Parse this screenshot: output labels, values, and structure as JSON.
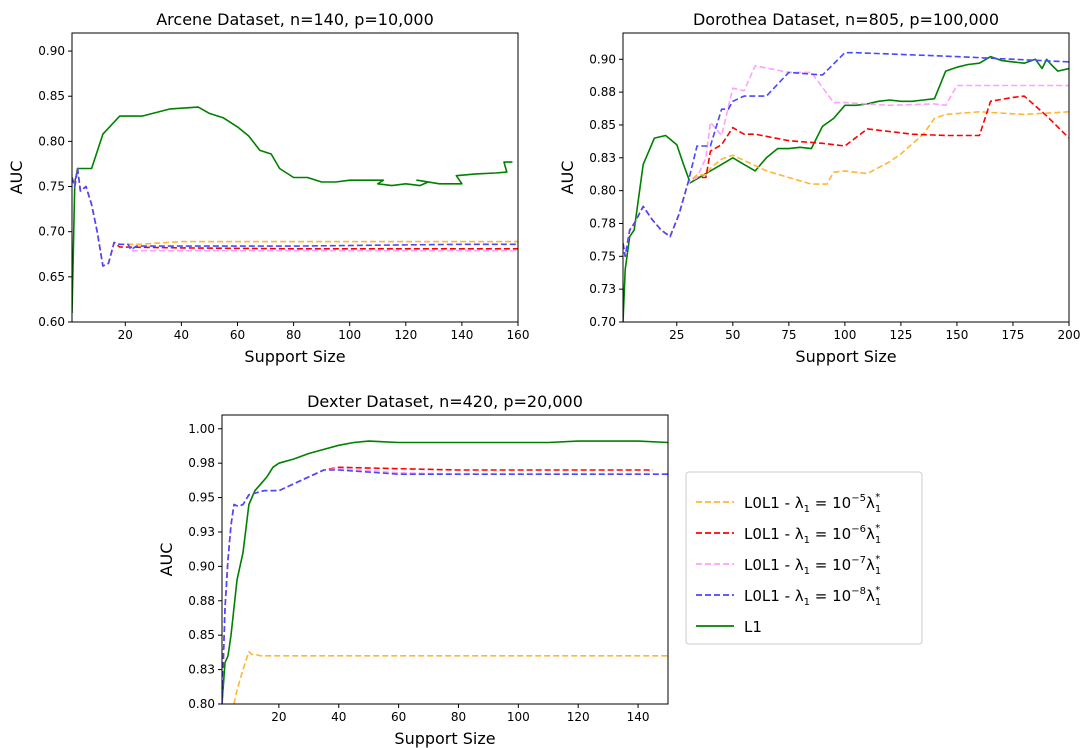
{
  "colors": {
    "L0L1_1e-5": "#ffb732",
    "L0L1_1e-6": "#ff0000",
    "L0L1_1e-7": "#ffa0ff",
    "L0L1_1e-8": "#4848ff",
    "L1": "#008000"
  },
  "legend": {
    "placement": "right of bottom panel",
    "entries": [
      {
        "key": "L0L1_1e-5",
        "prefix": "L0L1 - λ",
        "exp": "−5",
        "style": "dashed"
      },
      {
        "key": "L0L1_1e-6",
        "prefix": "L0L1 - λ",
        "exp": "−6",
        "style": "dashed"
      },
      {
        "key": "L0L1_1e-7",
        "prefix": "L0L1 - λ",
        "exp": "−7",
        "style": "dashed"
      },
      {
        "key": "L0L1_1e-8",
        "prefix": "L0L1 - λ",
        "exp": "−8",
        "style": "dashed"
      },
      {
        "key": "L1",
        "label": "L1",
        "style": "solid"
      }
    ]
  },
  "chart_data": [
    {
      "id": "arcene",
      "type": "line",
      "title": "Arcene Dataset, n=140, p=10,000",
      "xlabel": "Support Size",
      "ylabel": "AUC",
      "xlim": [
        1,
        160
      ],
      "ylim": [
        0.6,
        0.92
      ],
      "xticks": [
        20,
        40,
        60,
        80,
        100,
        120,
        140,
        160
      ],
      "yticks": [
        0.6,
        0.65,
        0.7,
        0.75,
        0.8,
        0.85,
        0.9
      ],
      "ytick_labels": [
        "0.60",
        "0.65",
        "0.70",
        "0.75",
        "0.80",
        "0.85",
        "0.90"
      ],
      "grid": false,
      "series": [
        {
          "key": "L1",
          "x": [
            1,
            2,
            3,
            4,
            8,
            12,
            18,
            26,
            36,
            46,
            50,
            55,
            60,
            64,
            68,
            72,
            75,
            80,
            85,
            90,
            95,
            100,
            108,
            112,
            110,
            115,
            120,
            125,
            128,
            124,
            132,
            140,
            138,
            145,
            152,
            156,
            155,
            158
          ],
          "y": [
            0.61,
            0.755,
            0.77,
            0.77,
            0.77,
            0.808,
            0.828,
            0.828,
            0.836,
            0.838,
            0.831,
            0.826,
            0.816,
            0.806,
            0.79,
            0.786,
            0.77,
            0.76,
            0.76,
            0.755,
            0.755,
            0.757,
            0.757,
            0.757,
            0.753,
            0.751,
            0.753,
            0.751,
            0.755,
            0.757,
            0.753,
            0.753,
            0.762,
            0.764,
            0.765,
            0.766,
            0.777,
            0.777
          ]
        },
        {
          "key": "L0L1_1e-5",
          "x": [
            1,
            2,
            3,
            4,
            6,
            8,
            10,
            12,
            14,
            16,
            18,
            25,
            40,
            60,
            80,
            100,
            120,
            140,
            160
          ],
          "y": [
            0.76,
            0.75,
            0.77,
            0.745,
            0.75,
            0.73,
            0.7,
            0.662,
            0.665,
            0.688,
            0.686,
            0.686,
            0.689,
            0.689,
            0.689,
            0.689,
            0.689,
            0.689,
            0.689
          ]
        },
        {
          "key": "L0L1_1e-6",
          "x": [
            1,
            2,
            3,
            4,
            6,
            8,
            10,
            12,
            14,
            16,
            18,
            40,
            80,
            120,
            160
          ],
          "y": [
            0.76,
            0.75,
            0.77,
            0.745,
            0.75,
            0.73,
            0.7,
            0.662,
            0.665,
            0.688,
            0.683,
            0.682,
            0.681,
            0.681,
            0.681
          ]
        },
        {
          "key": "L0L1_1e-7",
          "x": [
            1,
            2,
            3,
            4,
            6,
            8,
            10,
            12,
            14,
            16,
            18,
            21,
            22,
            80,
            160
          ],
          "y": [
            0.76,
            0.75,
            0.77,
            0.745,
            0.75,
            0.73,
            0.7,
            0.662,
            0.665,
            0.688,
            0.686,
            0.686,
            0.679,
            0.679,
            0.679
          ]
        },
        {
          "key": "L0L1_1e-8",
          "x": [
            1,
            2,
            3,
            4,
            6,
            8,
            10,
            12,
            14,
            16,
            18,
            21,
            22,
            24,
            80,
            140,
            160
          ],
          "y": [
            0.76,
            0.75,
            0.77,
            0.745,
            0.75,
            0.73,
            0.7,
            0.662,
            0.665,
            0.688,
            0.686,
            0.686,
            0.68,
            0.684,
            0.684,
            0.686,
            0.686
          ]
        }
      ]
    },
    {
      "id": "dorothea",
      "type": "line",
      "title": "Dorothea Dataset, n=805, p=100,000",
      "xlabel": "Support Size",
      "ylabel": "AUC",
      "xlim": [
        1,
        200
      ],
      "ylim": [
        0.7,
        0.92
      ],
      "xticks": [
        25,
        50,
        75,
        100,
        125,
        150,
        175,
        200
      ],
      "yticks": [
        0.7,
        0.725,
        0.75,
        0.775,
        0.8,
        0.825,
        0.85,
        0.875,
        0.9
      ],
      "ytick_labels": [
        "0.70",
        "0.73",
        "0.75",
        "0.78",
        "0.80",
        "0.83",
        "0.85",
        "0.88",
        "0.90"
      ],
      "grid": false,
      "series": [
        {
          "key": "L1",
          "x": [
            1,
            2,
            4,
            6,
            10,
            15,
            20,
            25,
            28,
            31,
            35,
            40,
            45,
            50,
            55,
            60,
            65,
            70,
            75,
            80,
            85,
            90,
            95,
            100,
            105,
            110,
            115,
            120,
            125,
            130,
            135,
            140,
            145,
            150,
            155,
            160,
            165,
            170,
            175,
            180,
            185,
            188,
            190,
            192,
            195,
            200
          ],
          "y": [
            0.7,
            0.74,
            0.765,
            0.77,
            0.82,
            0.84,
            0.842,
            0.835,
            0.82,
            0.806,
            0.81,
            0.815,
            0.82,
            0.825,
            0.82,
            0.815,
            0.825,
            0.832,
            0.832,
            0.833,
            0.832,
            0.849,
            0.855,
            0.865,
            0.865,
            0.866,
            0.868,
            0.869,
            0.868,
            0.868,
            0.869,
            0.87,
            0.891,
            0.894,
            0.896,
            0.897,
            0.902,
            0.899,
            0.898,
            0.897,
            0.9,
            0.893,
            0.9,
            0.896,
            0.891,
            0.893
          ]
        },
        {
          "key": "L0L1_1e-5",
          "x": [
            1,
            2,
            4,
            6,
            10,
            14,
            18,
            22,
            26,
            30,
            34,
            38,
            40,
            45,
            50,
            55,
            65,
            75,
            85,
            92,
            95,
            100,
            110,
            120,
            125,
            135,
            140,
            145,
            160,
            180,
            200
          ],
          "y": [
            0.76,
            0.75,
            0.77,
            0.775,
            0.788,
            0.778,
            0.77,
            0.765,
            0.782,
            0.806,
            0.812,
            0.812,
            0.817,
            0.824,
            0.827,
            0.823,
            0.815,
            0.81,
            0.805,
            0.805,
            0.814,
            0.815,
            0.813,
            0.822,
            0.828,
            0.843,
            0.855,
            0.858,
            0.86,
            0.858,
            0.86
          ]
        },
        {
          "key": "L0L1_1e-6",
          "x": [
            1,
            2,
            4,
            6,
            10,
            14,
            18,
            22,
            26,
            30,
            34,
            38,
            40,
            45,
            50,
            55,
            60,
            75,
            90,
            100,
            110,
            120,
            130,
            145,
            160,
            165,
            175,
            180,
            190,
            200
          ],
          "y": [
            0.76,
            0.75,
            0.77,
            0.775,
            0.788,
            0.778,
            0.77,
            0.765,
            0.782,
            0.806,
            0.81,
            0.81,
            0.83,
            0.835,
            0.848,
            0.843,
            0.843,
            0.838,
            0.836,
            0.834,
            0.847,
            0.845,
            0.843,
            0.842,
            0.842,
            0.868,
            0.871,
            0.872,
            0.857,
            0.84
          ]
        },
        {
          "key": "L0L1_1e-7",
          "x": [
            1,
            2,
            4,
            6,
            10,
            14,
            18,
            22,
            26,
            30,
            34,
            38,
            40,
            45,
            50,
            55,
            60,
            75,
            85,
            95,
            100,
            120,
            140,
            145,
            150,
            175,
            200
          ],
          "y": [
            0.76,
            0.75,
            0.77,
            0.775,
            0.788,
            0.778,
            0.77,
            0.765,
            0.782,
            0.806,
            0.81,
            0.825,
            0.852,
            0.842,
            0.878,
            0.876,
            0.895,
            0.89,
            0.89,
            0.867,
            0.867,
            0.865,
            0.866,
            0.865,
            0.88,
            0.88,
            0.88
          ]
        },
        {
          "key": "L0L1_1e-8",
          "x": [
            1,
            2,
            4,
            6,
            10,
            14,
            18,
            22,
            26,
            30,
            34,
            38,
            40,
            45,
            48,
            50,
            55,
            60,
            65,
            75,
            90,
            100,
            102,
            105,
            150,
            200
          ],
          "y": [
            0.76,
            0.75,
            0.77,
            0.775,
            0.788,
            0.778,
            0.77,
            0.765,
            0.782,
            0.806,
            0.834,
            0.834,
            0.834,
            0.862,
            0.862,
            0.868,
            0.872,
            0.872,
            0.872,
            0.89,
            0.888,
            0.905,
            0.905,
            0.905,
            0.902,
            0.898
          ]
        }
      ]
    },
    {
      "id": "dexter",
      "type": "line",
      "title": "Dexter Dataset, n=420, p=20,000",
      "xlabel": "Support Size",
      "ylabel": "AUC",
      "xlim": [
        1,
        150
      ],
      "ylim": [
        0.8,
        1.01
      ],
      "xticks": [
        20,
        40,
        60,
        80,
        100,
        120,
        140
      ],
      "yticks": [
        0.8,
        0.825,
        0.85,
        0.875,
        0.9,
        0.925,
        0.95,
        0.975,
        1.0
      ],
      "ytick_labels": [
        "0.80",
        "0.83",
        "0.85",
        "0.88",
        "0.90",
        "0.93",
        "0.95",
        "0.98",
        "1.00"
      ],
      "grid": false,
      "series": [
        {
          "key": "L1",
          "x": [
            1,
            2,
            3,
            4,
            5,
            6,
            8,
            10,
            12,
            14,
            16,
            18,
            20,
            25,
            30,
            35,
            40,
            45,
            50,
            60,
            70,
            80,
            90,
            100,
            110,
            120,
            130,
            140,
            150
          ],
          "y": [
            0.8,
            0.83,
            0.835,
            0.85,
            0.87,
            0.89,
            0.91,
            0.945,
            0.955,
            0.96,
            0.965,
            0.972,
            0.975,
            0.978,
            0.982,
            0.985,
            0.988,
            0.99,
            0.991,
            0.99,
            0.99,
            0.99,
            0.99,
            0.99,
            0.99,
            0.991,
            0.991,
            0.991,
            0.99
          ]
        },
        {
          "key": "L0L1_1e-5",
          "x": [
            5,
            6,
            8,
            10,
            11,
            12,
            14,
            30,
            60,
            100,
            150
          ],
          "y": [
            0.8,
            0.81,
            0.825,
            0.838,
            0.836,
            0.836,
            0.835,
            0.835,
            0.835,
            0.835,
            0.835
          ]
        },
        {
          "key": "L0L1_1e-6",
          "x": [
            1,
            2,
            3,
            4,
            5,
            6,
            7,
            8,
            10,
            15,
            20,
            25,
            30,
            35,
            40,
            60,
            80,
            100,
            120,
            145
          ],
          "y": [
            0.8,
            0.87,
            0.905,
            0.93,
            0.945,
            0.944,
            0.944,
            0.945,
            0.952,
            0.955,
            0.955,
            0.96,
            0.965,
            0.97,
            0.972,
            0.971,
            0.97,
            0.97,
            0.97,
            0.97
          ]
        },
        {
          "key": "L0L1_1e-7",
          "x": [
            1,
            2,
            3,
            4,
            5,
            6,
            7,
            8,
            10,
            15,
            20,
            25,
            30,
            35,
            40,
            60,
            80,
            100,
            120,
            150
          ],
          "y": [
            0.8,
            0.87,
            0.905,
            0.93,
            0.945,
            0.944,
            0.944,
            0.945,
            0.952,
            0.955,
            0.955,
            0.96,
            0.965,
            0.97,
            0.971,
            0.968,
            0.967,
            0.967,
            0.967,
            0.967
          ]
        },
        {
          "key": "L0L1_1e-8",
          "x": [
            1,
            2,
            3,
            4,
            5,
            6,
            7,
            8,
            10,
            15,
            20,
            25,
            30,
            35,
            40,
            60,
            80,
            100,
            120,
            150
          ],
          "y": [
            0.8,
            0.87,
            0.905,
            0.93,
            0.945,
            0.944,
            0.944,
            0.945,
            0.952,
            0.955,
            0.955,
            0.96,
            0.965,
            0.97,
            0.97,
            0.967,
            0.967,
            0.967,
            0.967,
            0.967
          ]
        }
      ]
    }
  ]
}
